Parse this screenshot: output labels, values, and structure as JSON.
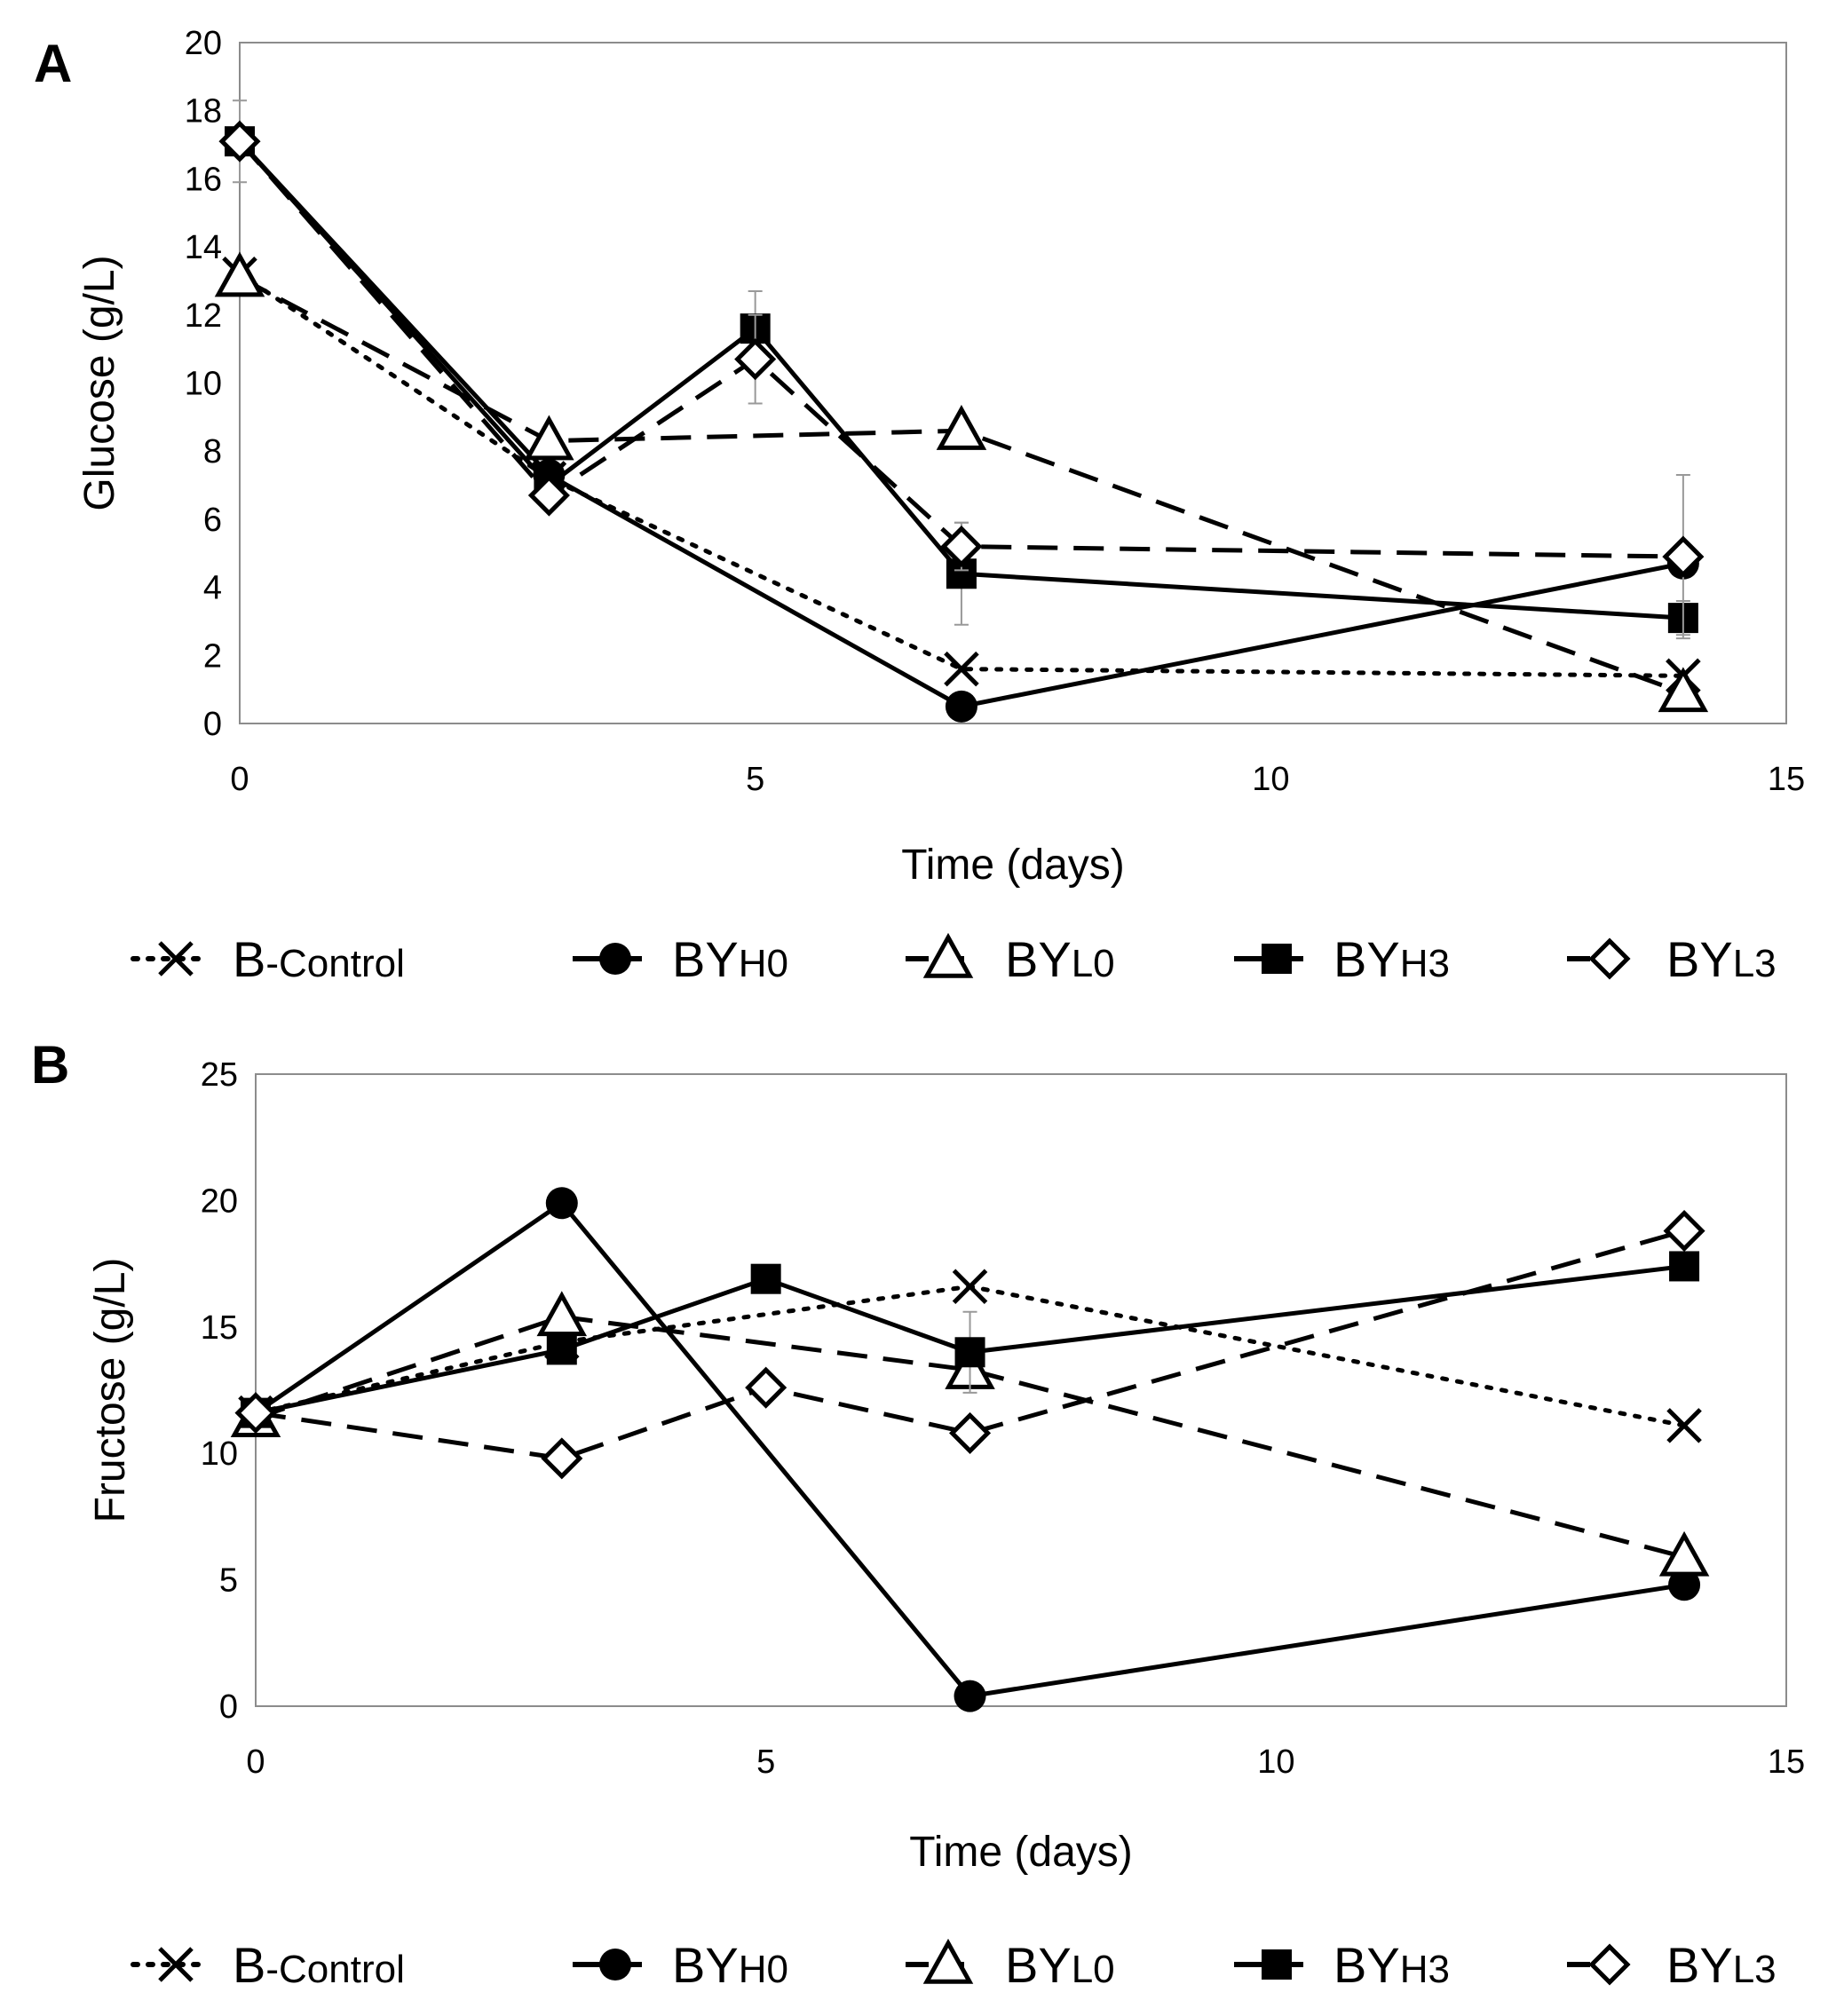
{
  "chart_data": [
    {
      "type": "line",
      "panel_label": "A",
      "xlabel": "Time (days)",
      "ylabel": "Glucose (g/L)",
      "xlim": [
        0,
        15
      ],
      "ylim": [
        0,
        20
      ],
      "xticks": [
        0,
        5,
        10,
        15
      ],
      "yticks": [
        0,
        2,
        4,
        6,
        8,
        10,
        12,
        14,
        16,
        18,
        20
      ],
      "grid": false,
      "legend_position": "bottom",
      "series": [
        {
          "name": "B-Control",
          "label_main": "B",
          "label_sub": "-Control",
          "marker": "x",
          "line": "dotted",
          "x": [
            0,
            3,
            7,
            14
          ],
          "y": [
            13.2,
            7.2,
            1.6,
            1.4
          ],
          "err": [
            0,
            0,
            0,
            0
          ]
        },
        {
          "name": "BYH0",
          "label_main": "BY",
          "label_sub": "H0",
          "marker": "circle",
          "line": "solid",
          "x": [
            0,
            3,
            7,
            14
          ],
          "y": [
            17.1,
            7.3,
            0.5,
            4.7
          ],
          "err": [
            1.2,
            0,
            0,
            0
          ]
        },
        {
          "name": "BYL0",
          "label_main": "BY",
          "label_sub": "L0",
          "marker": "triangle",
          "line": "dashed",
          "x": [
            0,
            3,
            7,
            14
          ],
          "y": [
            13.1,
            8.3,
            8.6,
            0.9
          ],
          "err": [
            0,
            0,
            0,
            0
          ]
        },
        {
          "name": "BYH3",
          "label_main": "BY",
          "label_sub": "H3",
          "marker": "square",
          "line": "solid",
          "x": [
            0,
            3,
            5,
            7,
            14
          ],
          "y": [
            17.1,
            7.0,
            11.6,
            4.4,
            3.1
          ],
          "err": [
            0,
            0,
            1.1,
            1.5,
            0.5
          ]
        },
        {
          "name": "BYL3",
          "label_main": "BY",
          "label_sub": "L3",
          "marker": "diamond",
          "line": "dashed",
          "x": [
            0,
            3,
            5,
            7,
            14
          ],
          "y": [
            17.1,
            6.7,
            10.7,
            5.2,
            4.9
          ],
          "err": [
            0,
            0,
            1.3,
            0.7,
            2.4
          ]
        }
      ]
    },
    {
      "type": "line",
      "panel_label": "B",
      "xlabel": "Time (days)",
      "ylabel": "Fructose (g/L)",
      "xlim": [
        0,
        15
      ],
      "ylim": [
        0,
        25
      ],
      "xticks": [
        0,
        5,
        10,
        15
      ],
      "yticks": [
        0,
        5,
        10,
        15,
        20,
        25
      ],
      "grid": false,
      "legend_position": "bottom",
      "series": [
        {
          "name": "B-Control",
          "label_main": "B",
          "label_sub": "-Control",
          "marker": "x",
          "line": "dotted",
          "x": [
            0,
            3,
            7,
            14
          ],
          "y": [
            11.6,
            14.4,
            16.6,
            11.1
          ],
          "err": [
            0,
            0,
            0,
            0
          ]
        },
        {
          "name": "BYH0",
          "label_main": "BY",
          "label_sub": "H0",
          "marker": "circle",
          "line": "solid",
          "x": [
            0,
            3,
            7,
            14
          ],
          "y": [
            11.6,
            19.9,
            0.4,
            4.8
          ],
          "err": [
            0,
            0,
            0,
            0
          ]
        },
        {
          "name": "BYL0",
          "label_main": "BY",
          "label_sub": "L0",
          "marker": "triangle",
          "line": "dashed",
          "x": [
            0,
            3,
            7,
            14
          ],
          "y": [
            11.4,
            15.4,
            13.3,
            5.9
          ],
          "err": [
            0,
            0,
            0,
            0
          ]
        },
        {
          "name": "BYH3",
          "label_main": "BY",
          "label_sub": "H3",
          "marker": "square",
          "line": "solid",
          "x": [
            0,
            3,
            5,
            7,
            14
          ],
          "y": [
            11.6,
            14.1,
            16.9,
            14.0,
            17.4
          ],
          "err": [
            0,
            0,
            0,
            1.6,
            0
          ]
        },
        {
          "name": "BYL3",
          "label_main": "BY",
          "label_sub": "L3",
          "marker": "diamond",
          "line": "dashed",
          "x": [
            0,
            3,
            5,
            7,
            14
          ],
          "y": [
            11.6,
            9.8,
            12.6,
            10.8,
            18.8
          ],
          "err": [
            0,
            0,
            0,
            0,
            0
          ]
        }
      ]
    }
  ]
}
